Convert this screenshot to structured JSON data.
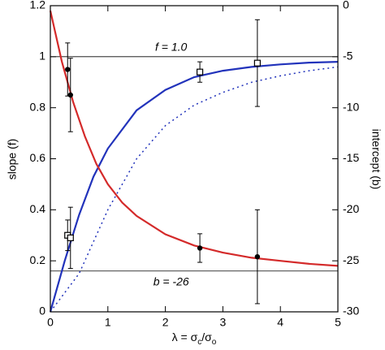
{
  "chart_data": {
    "type": "line",
    "xlabel": [
      "λ = σ",
      "c",
      "/σ",
      "o"
    ],
    "ylabel": "slope (f)",
    "y2label": "intercept (b)",
    "xlim": [
      0,
      5
    ],
    "xticks": [
      0,
      1,
      2,
      3,
      4,
      5
    ],
    "ylim": [
      0,
      1.2
    ],
    "yticks": [
      0,
      0.2,
      0.4,
      0.6,
      0.8,
      1,
      1.2
    ],
    "y2lim": [
      -30,
      0
    ],
    "y2ticks": [
      -30,
      -25,
      -20,
      -15,
      -10,
      -5,
      0
    ],
    "annotations": [
      "f = 1.0",
      "b = -26"
    ],
    "hlines": [
      {
        "value": 1.0,
        "axis": "y"
      },
      {
        "value": -26,
        "axis": "y2"
      }
    ],
    "series": [
      {
        "kind": "curve",
        "color": "#2233bb",
        "dash": false,
        "x": [
          0,
          0.25,
          0.5,
          0.75,
          1,
          1.5,
          2,
          2.5,
          3,
          3.5,
          4,
          4.5,
          5
        ],
        "values": [
          0,
          0.2,
          0.38,
          0.53,
          0.64,
          0.79,
          0.87,
          0.92,
          0.945,
          0.96,
          0.97,
          0.977,
          0.98
        ]
      },
      {
        "kind": "curve",
        "color": "#2233bb",
        "dash": true,
        "x": [
          0,
          0.5,
          1,
          1.5,
          2,
          2.5,
          3,
          3.5,
          4,
          4.5,
          5
        ],
        "values": [
          0,
          0.15,
          0.4,
          0.6,
          0.73,
          0.81,
          0.86,
          0.9,
          0.925,
          0.945,
          0.96
        ]
      },
      {
        "kind": "curve",
        "color": "#d42a2a",
        "dash": false,
        "axis": "y2",
        "x": [
          0,
          0.2,
          0.4,
          0.6,
          0.8,
          1,
          1.25,
          1.5,
          2,
          2.5,
          3,
          3.5,
          4,
          4.5,
          5
        ],
        "values": [
          -0.5,
          -5.5,
          -9.5,
          -12.8,
          -15.5,
          -17.5,
          -19.3,
          -20.6,
          -22.4,
          -23.5,
          -24.2,
          -24.7,
          -25.0,
          -25.3,
          -25.5
        ]
      },
      {
        "kind": "points",
        "marker": "square",
        "color": "#000000",
        "x": [
          0.3,
          0.35,
          2.6,
          3.6
        ],
        "values": [
          0.3,
          0.29,
          0.94,
          0.975
        ],
        "errors": [
          0.06,
          0.12,
          0.04,
          0.17
        ]
      },
      {
        "kind": "points",
        "marker": "circle",
        "color": "#000000",
        "axis": "y2",
        "x": [
          0.3,
          0.35,
          2.6,
          3.6
        ],
        "values": [
          -6.25,
          -8.75,
          -23.75,
          -24.6
        ],
        "errors": [
          2.6,
          3.6,
          1.4,
          4.6
        ]
      }
    ]
  }
}
